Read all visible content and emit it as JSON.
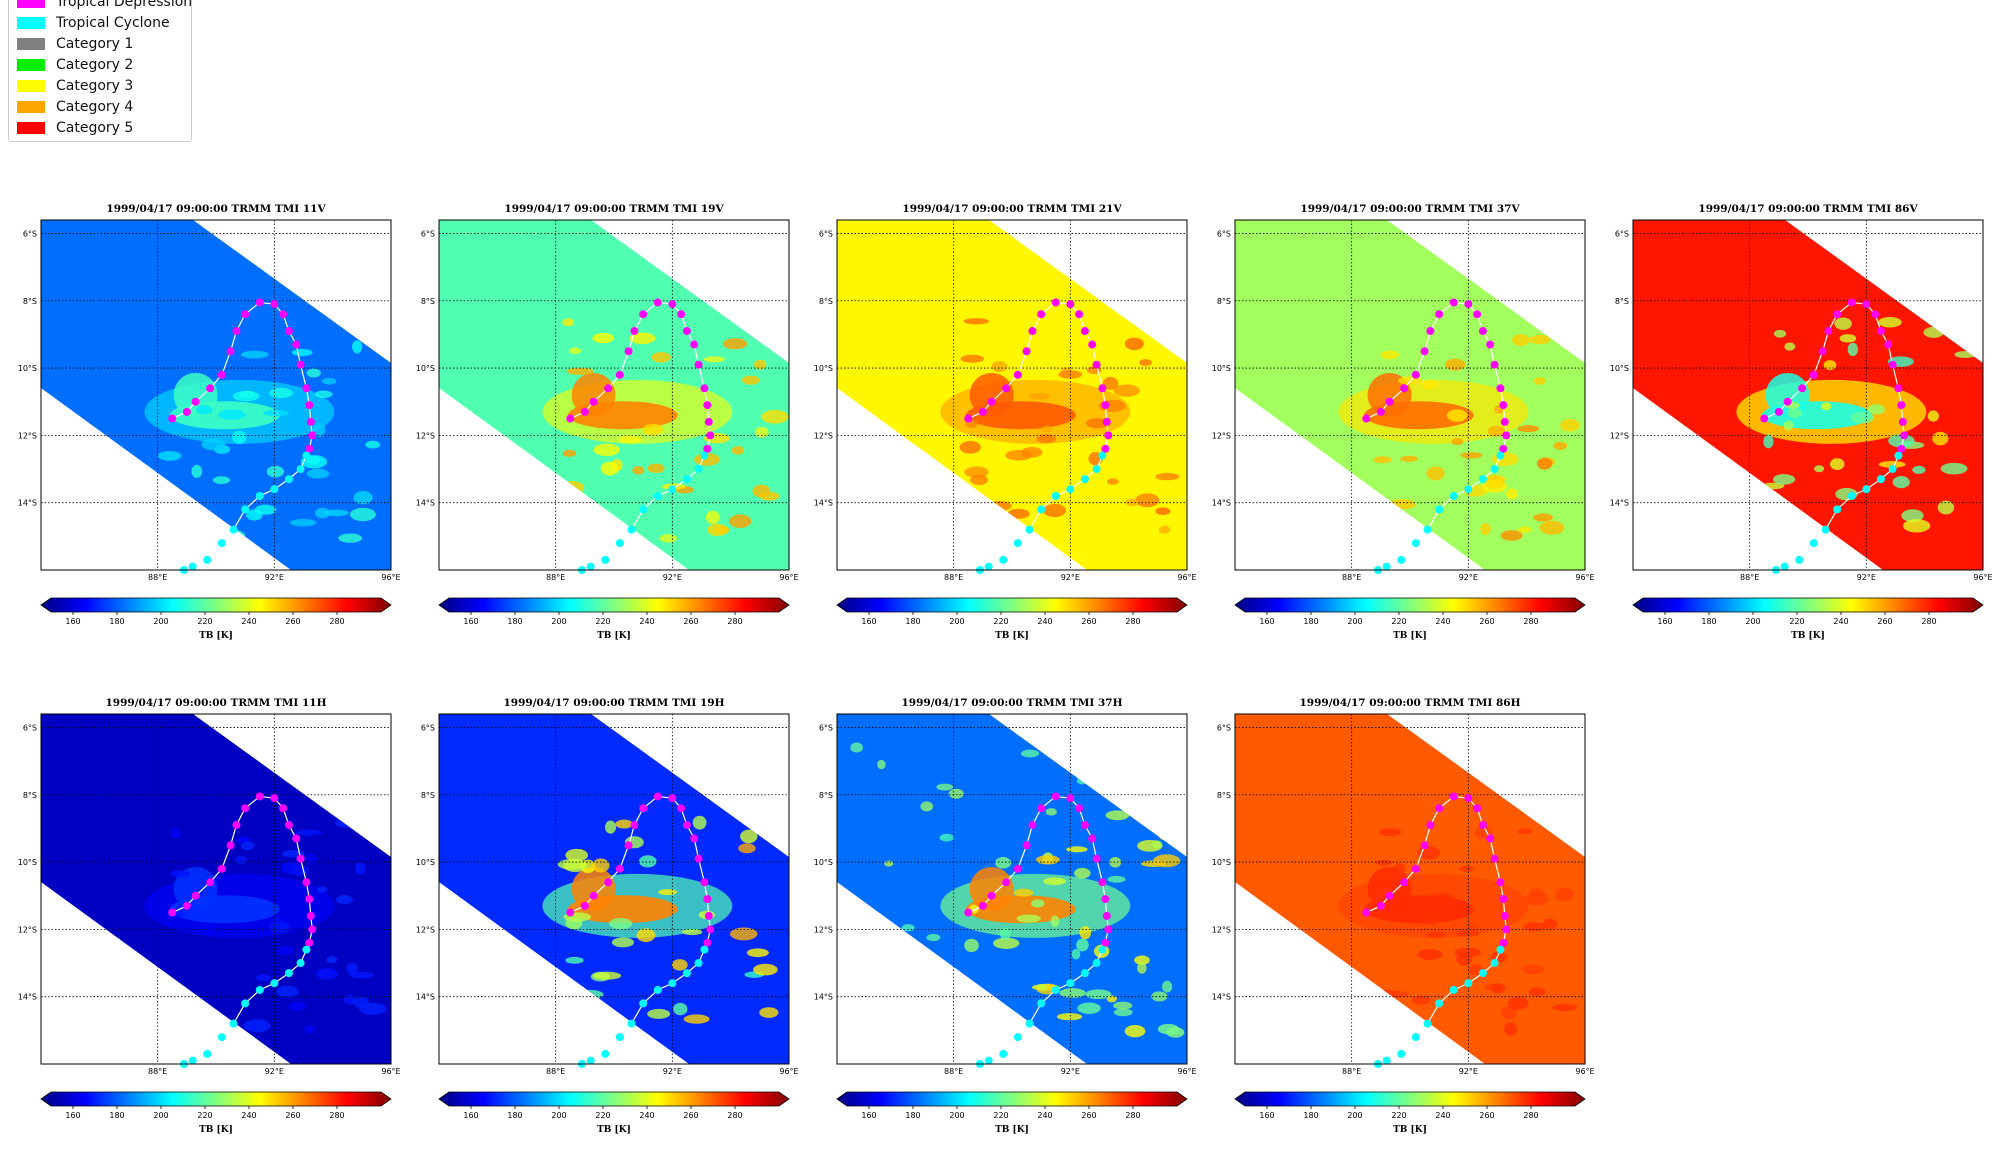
{
  "legend": {
    "items": [
      {
        "label": "Tropical Depression",
        "color": "#ff00ff"
      },
      {
        "label": "Tropical Cyclone",
        "color": "#00ffff"
      },
      {
        "label": "Category 1",
        "color": "#808080"
      },
      {
        "label": "Category 2",
        "color": "#00ee00"
      },
      {
        "label": "Category 3",
        "color": "#ffff00"
      },
      {
        "label": "Category 4",
        "color": "#ffa500"
      },
      {
        "label": "Category 5",
        "color": "#ff0000"
      }
    ]
  },
  "chart_data": {
    "type": "heatmap",
    "colormap": "jet",
    "colorbar": {
      "range": [
        150,
        300
      ],
      "ticks": [
        160,
        180,
        200,
        220,
        240,
        260,
        280
      ],
      "label": "TB [K]"
    },
    "map": {
      "lon_range": [
        84,
        96
      ],
      "lat_range": [
        -16,
        -5.6
      ],
      "lon_ticks": [
        "88°E",
        "92°E",
        "96°E"
      ],
      "lon_tick_values": [
        88,
        92,
        96
      ],
      "lat_ticks": [
        "6°S",
        "8°S",
        "10°S",
        "12°S",
        "14°S"
      ],
      "lat_tick_values": [
        -6,
        -8,
        -10,
        -12,
        -14
      ],
      "grid": true
    },
    "track": {
      "depression": [
        [
          88.5,
          -11.5
        ],
        [
          89.0,
          -11.3
        ],
        [
          89.3,
          -11.0
        ],
        [
          89.8,
          -10.6
        ],
        [
          90.2,
          -10.2
        ],
        [
          90.5,
          -9.5
        ],
        [
          90.7,
          -8.9
        ],
        [
          91.0,
          -8.4
        ],
        [
          91.5,
          -8.05
        ],
        [
          92.0,
          -8.1
        ],
        [
          92.3,
          -8.4
        ],
        [
          92.5,
          -8.9
        ],
        [
          92.75,
          -9.3
        ],
        [
          92.9,
          -9.9
        ],
        [
          93.1,
          -10.6
        ],
        [
          93.2,
          -11.1
        ],
        [
          93.25,
          -11.6
        ],
        [
          93.3,
          -12.0
        ],
        [
          93.2,
          -12.4
        ]
      ],
      "cyclone": [
        [
          93.1,
          -12.6
        ],
        [
          92.9,
          -13.0
        ],
        [
          92.5,
          -13.3
        ],
        [
          92.0,
          -13.6
        ],
        [
          91.5,
          -13.8
        ],
        [
          91.0,
          -14.2
        ],
        [
          90.6,
          -14.8
        ],
        [
          90.2,
          -15.2
        ],
        [
          89.7,
          -15.7
        ],
        [
          89.2,
          -15.9
        ],
        [
          88.9,
          -16.0
        ]
      ]
    },
    "panels": [
      {
        "title": "1999/04/17 09:00:00  TRMM TMI 11V",
        "background_tb": 185,
        "storm_tb": 215,
        "dry_cells": false
      },
      {
        "title": "1999/04/17 09:00:00  TRMM TMI 19V",
        "background_tb": 218,
        "storm_tb": 262,
        "dry_cells": false
      },
      {
        "title": "1999/04/17 09:00:00  TRMM TMI 21V",
        "background_tb": 245,
        "storm_tb": 268,
        "dry_cells": false
      },
      {
        "title": "1999/04/17 09:00:00  TRMM TMI 37V",
        "background_tb": 230,
        "storm_tb": 265,
        "dry_cells": false
      },
      {
        "title": "1999/04/17 09:00:00  TRMM TMI 86V",
        "background_tb": 278,
        "storm_tb": 210,
        "dry_cells": false
      },
      {
        "title": "1999/04/17 09:00:00  TRMM TMI 11H",
        "background_tb": 160,
        "storm_tb": 176,
        "dry_cells": false
      },
      {
        "title": "1999/04/17 09:00:00  TRMM TMI 19H",
        "background_tb": 175,
        "storm_tb": 262,
        "dry_cells": false
      },
      {
        "title": "1999/04/17 09:00:00  TRMM TMI 37H",
        "background_tb": 185,
        "storm_tb": 262,
        "dry_cells": true
      },
      {
        "title": "1999/04/17 09:00:00  TRMM TMI 86H",
        "background_tb": 268,
        "storm_tb": 275,
        "dry_cells": false
      }
    ]
  }
}
